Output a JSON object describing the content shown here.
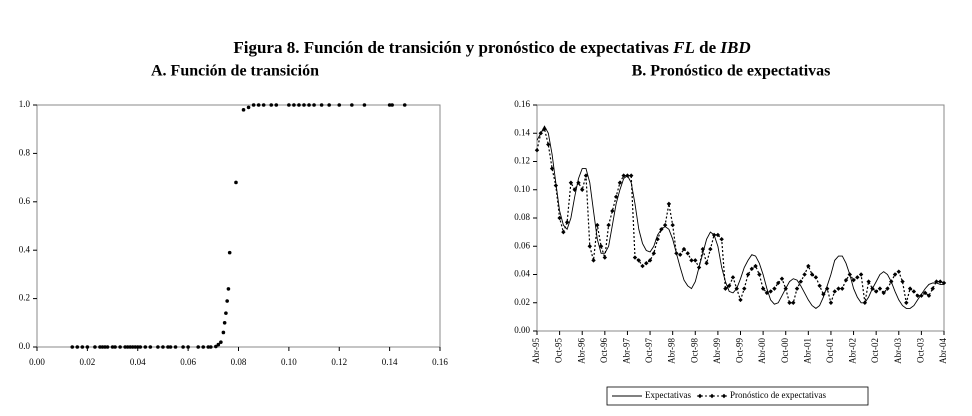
{
  "figure_title": [
    "Figura 8. Función de transición y pronóstico de expectativas ",
    "FL",
    " de ",
    "IBD"
  ],
  "chart_data": [
    {
      "type": "scatter",
      "title": "A. Función de transición",
      "color": "#000000",
      "x": [
        0.014,
        0.016,
        0.018,
        0.02,
        0.023,
        0.025,
        0.026,
        0.027,
        0.028,
        0.03,
        0.031,
        0.033,
        0.035,
        0.036,
        0.037,
        0.038,
        0.039,
        0.04,
        0.041,
        0.043,
        0.045,
        0.048,
        0.05,
        0.052,
        0.053,
        0.055,
        0.058,
        0.06,
        0.064,
        0.066,
        0.068,
        0.069,
        0.071,
        0.072,
        0.073,
        0.074,
        0.0745,
        0.075,
        0.0755,
        0.076,
        0.0765,
        0.079,
        0.082,
        0.084,
        0.086,
        0.088,
        0.09,
        0.093,
        0.095,
        0.1,
        0.102,
        0.104,
        0.106,
        0.108,
        0.11,
        0.113,
        0.116,
        0.12,
        0.125,
        0.13,
        0.14,
        0.141,
        0.146
      ],
      "values": [
        0,
        0,
        0,
        0,
        0,
        0,
        0,
        0,
        0,
        0,
        0,
        0,
        0,
        0,
        0,
        0,
        0,
        0,
        0,
        0,
        0,
        0,
        0,
        0,
        0,
        0,
        0,
        0,
        0,
        0,
        0,
        0,
        0.002,
        0.01,
        0.02,
        0.06,
        0.1,
        0.14,
        0.19,
        0.24,
        0.39,
        0.68,
        0.98,
        0.99,
        1,
        1,
        1,
        1,
        1,
        1,
        1,
        1,
        1,
        1,
        1,
        1,
        1,
        1,
        1,
        1,
        1,
        1,
        1
      ],
      "xlim": [
        0,
        0.16
      ],
      "xticks": [
        {
          "value": 0,
          "label": "0.00"
        },
        {
          "value": 0.02,
          "label": "0.02"
        },
        {
          "value": 0.04,
          "label": "0.04"
        },
        {
          "value": 0.06,
          "label": "0.06"
        },
        {
          "value": 0.08,
          "label": "0.08"
        },
        {
          "value": 0.1,
          "label": "0.10"
        },
        {
          "value": 0.12,
          "label": "0.12"
        },
        {
          "value": 0.14,
          "label": "0.14"
        },
        {
          "value": 0.16,
          "label": "0.16"
        }
      ],
      "ylim": [
        0,
        1
      ],
      "yticks": [
        {
          "value": 0,
          "label": "0.0"
        },
        {
          "value": 0.2,
          "label": "0.2"
        },
        {
          "value": 0.4,
          "label": "0.4"
        },
        {
          "value": 0.6,
          "label": "0.6"
        },
        {
          "value": 0.8,
          "label": "0.8"
        },
        {
          "value": 1,
          "label": "1.0"
        }
      ]
    },
    {
      "type": "line",
      "title": "B. Pronóstico de expectativas",
      "legend": "bottom",
      "categories": [
        "Abr-95",
        null,
        null,
        null,
        null,
        null,
        "Oct-95",
        null,
        null,
        null,
        null,
        null,
        "Abr-96",
        null,
        null,
        null,
        null,
        null,
        "Oct-96",
        null,
        null,
        null,
        null,
        null,
        "Abr-97",
        null,
        null,
        null,
        null,
        null,
        "Oct-97",
        null,
        null,
        null,
        null,
        null,
        "Abr-98",
        null,
        null,
        null,
        null,
        null,
        "Oct-98",
        null,
        null,
        null,
        null,
        null,
        "Abr-99",
        null,
        null,
        null,
        null,
        null,
        "Oct-99",
        null,
        null,
        null,
        null,
        null,
        "Abr-00",
        null,
        null,
        null,
        null,
        null,
        "Oct-00",
        null,
        null,
        null,
        null,
        null,
        "Abr-01",
        null,
        null,
        null,
        null,
        null,
        "Oct-01",
        null,
        null,
        null,
        null,
        null,
        "Abr-02",
        null,
        null,
        null,
        null,
        null,
        "Oct-02",
        null,
        null,
        null,
        null,
        null,
        "Abr-03",
        null,
        null,
        null,
        null,
        null,
        "Oct-03",
        null,
        null,
        null,
        null,
        null,
        "Abr-04"
      ],
      "series": [
        {
          "name": "Expectativas",
          "color": "#000000",
          "values": [
            0.135,
            0.14,
            0.145,
            0.14,
            0.125,
            0.105,
            0.085,
            0.075,
            0.072,
            0.08,
            0.095,
            0.108,
            0.115,
            0.115,
            0.105,
            0.085,
            0.065,
            0.055,
            0.055,
            0.06,
            0.075,
            0.09,
            0.1,
            0.108,
            0.11,
            0.105,
            0.09,
            0.072,
            0.062,
            0.057,
            0.056,
            0.06,
            0.068,
            0.072,
            0.074,
            0.072,
            0.065,
            0.055,
            0.045,
            0.036,
            0.032,
            0.03,
            0.035,
            0.045,
            0.055,
            0.065,
            0.07,
            0.068,
            0.06,
            0.045,
            0.035,
            0.028,
            0.027,
            0.03,
            0.037,
            0.045,
            0.05,
            0.054,
            0.053,
            0.048,
            0.04,
            0.03,
            0.022,
            0.019,
            0.02,
            0.025,
            0.03,
            0.035,
            0.037,
            0.036,
            0.032,
            0.027,
            0.022,
            0.018,
            0.016,
            0.018,
            0.024,
            0.032,
            0.04,
            0.05,
            0.053,
            0.053,
            0.048,
            0.04,
            0.03,
            0.024,
            0.02,
            0.02,
            0.024,
            0.03,
            0.035,
            0.04,
            0.042,
            0.04,
            0.035,
            0.028,
            0.022,
            0.018,
            0.016,
            0.016,
            0.018,
            0.022,
            0.026,
            0.03,
            0.033,
            0.034,
            0.034,
            0.033,
            0.033
          ]
        },
        {
          "name": "Pronóstico de expectativas",
          "color": "#000000",
          "values": [
            0.128,
            0.14,
            0.143,
            0.132,
            0.115,
            0.103,
            0.08,
            0.07,
            0.077,
            0.105,
            0.1,
            0.105,
            0.1,
            0.11,
            0.06,
            0.05,
            0.075,
            0.06,
            0.052,
            0.075,
            0.085,
            0.095,
            0.105,
            0.11,
            0.11,
            0.11,
            0.052,
            0.05,
            0.046,
            0.048,
            0.05,
            0.055,
            0.065,
            0.072,
            0.075,
            0.09,
            0.075,
            0.055,
            0.054,
            0.058,
            0.055,
            0.05,
            0.05,
            0.045,
            0.058,
            0.048,
            0.058,
            0.068,
            0.068,
            0.065,
            0.03,
            0.032,
            0.038,
            0.03,
            0.022,
            0.03,
            0.04,
            0.044,
            0.046,
            0.04,
            0.03,
            0.027,
            0.028,
            0.03,
            0.034,
            0.037,
            0.03,
            0.02,
            0.02,
            0.03,
            0.035,
            0.04,
            0.046,
            0.04,
            0.038,
            0.032,
            0.026,
            0.03,
            0.02,
            0.028,
            0.03,
            0.03,
            0.036,
            0.04,
            0.036,
            0.038,
            0.04,
            0.02,
            0.035,
            0.03,
            0.028,
            0.03,
            0.027,
            0.03,
            0.035,
            0.04,
            0.042,
            0.035,
            0.02,
            0.03,
            0.028,
            0.025,
            0.025,
            0.027,
            0.025,
            0.03,
            0.035,
            0.035,
            0.034
          ]
        }
      ],
      "ylim": [
        0,
        0.16
      ],
      "yticks": [
        {
          "value": 0,
          "label": "0.00"
        },
        {
          "value": 0.02,
          "label": "0.02"
        },
        {
          "value": 0.04,
          "label": "0.04"
        },
        {
          "value": 0.06,
          "label": "0.06"
        },
        {
          "value": 0.08,
          "label": "0.08"
        },
        {
          "value": 0.1,
          "label": "0.10"
        },
        {
          "value": 0.12,
          "label": "0.12"
        },
        {
          "value": 0.14,
          "label": "0.14"
        },
        {
          "value": 0.16,
          "label": "0.16"
        }
      ]
    }
  ]
}
